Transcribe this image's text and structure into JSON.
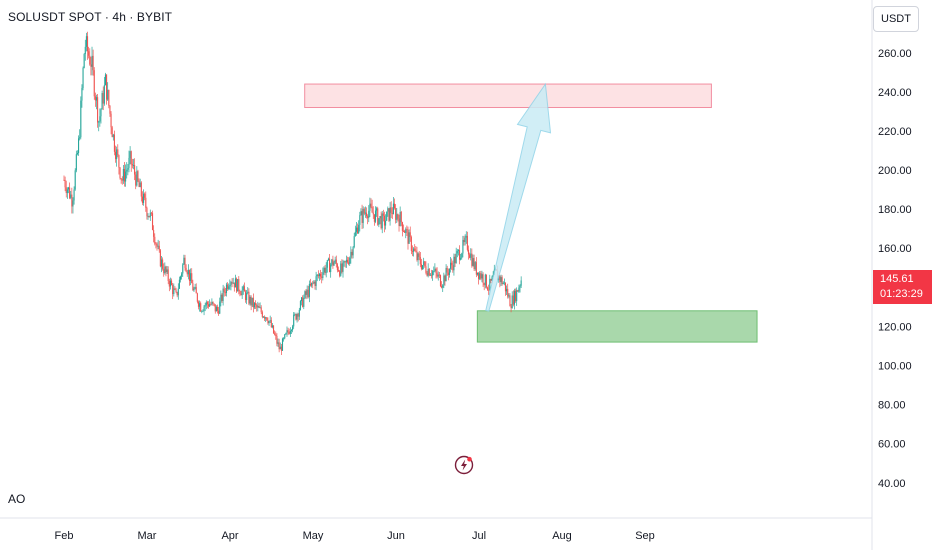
{
  "header": {
    "symbol_title": "SOLUSDT SPOT · 4h · BYBIT",
    "currency": "USDT"
  },
  "indicator": {
    "label": "AO"
  },
  "price_badge": {
    "price": "145.61",
    "countdown": "01:23:29"
  },
  "colors": {
    "up": "#26a69a",
    "down": "#ef5350",
    "resistance_fill": "#fde2e4",
    "resistance_stroke": "#f28da0",
    "support_fill": "#a5d6a7",
    "support_stroke": "#66bb6a",
    "arrow_fill": "#c9ecf5",
    "arrow_stroke": "#8fd3e8",
    "price_badge": "#f23645"
  },
  "chart_data": {
    "type": "line",
    "title": "SOLUSDT SPOT · 4h · BYBIT",
    "xlabel": "",
    "ylabel": "",
    "x_ticks": [
      "Feb",
      "Mar",
      "Apr",
      "May",
      "Jun",
      "Jul",
      "Aug",
      "Sep"
    ],
    "y_ticks": [
      40,
      60,
      80,
      100,
      120,
      140,
      160,
      180,
      200,
      220,
      240,
      260
    ],
    "ylim": [
      22,
      287
    ],
    "x_range": [
      0,
      8.8
    ],
    "grid": false,
    "series": [
      {
        "x": [
          0.0,
          0.1,
          0.18,
          0.25,
          0.33,
          0.42,
          0.5,
          0.6,
          0.7,
          0.8,
          0.95,
          1.05,
          1.15,
          1.25,
          1.35,
          1.45,
          1.55,
          1.65,
          1.75,
          1.85,
          1.92,
          2.0,
          2.15,
          2.3,
          2.45,
          2.6,
          2.75,
          2.9,
          3.05,
          3.15,
          3.25,
          3.35,
          3.45,
          3.55,
          3.65,
          3.75,
          3.85,
          3.95,
          4.05,
          4.15,
          4.25,
          4.35,
          4.45,
          4.55,
          4.65,
          4.75,
          4.85,
          4.95,
          5.05,
          5.12,
          5.2,
          5.3,
          5.38,
          5.45,
          5.52
        ],
        "values": [
          195,
          185,
          215,
          265,
          255,
          225,
          245,
          215,
          195,
          205,
          185,
          175,
          155,
          145,
          135,
          155,
          140,
          130,
          132,
          128,
          137,
          145,
          138,
          130,
          125,
          108,
          122,
          135,
          145,
          150,
          153,
          148,
          157,
          174,
          180,
          177,
          173,
          180,
          175,
          165,
          155,
          150,
          148,
          143,
          150,
          157,
          163,
          150,
          145,
          140,
          147,
          142,
          132,
          137,
          145.61
        ]
      }
    ],
    "annotations": [
      {
        "type": "zone",
        "label": "resistance",
        "x0": 2.9,
        "x1": 7.8,
        "y_low": 232,
        "y_high": 244
      },
      {
        "type": "zone",
        "label": "support",
        "x0": 4.98,
        "x1": 8.35,
        "y_low": 112,
        "y_high": 128
      },
      {
        "type": "arrow",
        "from": [
          5.1,
          128
        ],
        "to": [
          5.8,
          244
        ]
      }
    ]
  }
}
